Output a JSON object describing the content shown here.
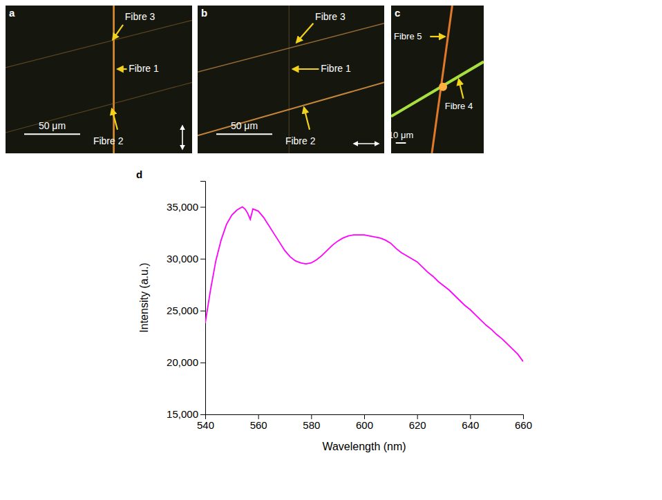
{
  "panels": [
    {
      "letter": "a",
      "labels": [
        "Fibre 3",
        "Fibre 1",
        "Fibre 2"
      ],
      "scale_bar": "50 μm"
    },
    {
      "letter": "b",
      "labels": [
        "Fibre 3",
        "Fibre 1",
        "Fibre 2"
      ],
      "scale_bar": "50 μm"
    },
    {
      "letter": "c",
      "labels": [
        "Fibre 5",
        "Fibre 4"
      ],
      "scale_bar": "10 μm"
    },
    {
      "letter": "d"
    }
  ],
  "chart_data": {
    "type": "line",
    "xlabel": "Wavelength (nm)",
    "ylabel": "Intensity (a.u.)",
    "x": [
      540,
      542,
      544,
      546,
      548,
      550,
      552,
      554,
      555,
      556,
      557,
      558,
      560,
      562,
      564,
      566,
      568,
      570,
      572,
      574,
      576,
      578,
      580,
      582,
      584,
      586,
      588,
      590,
      592,
      594,
      596,
      598,
      600,
      602,
      604,
      606,
      608,
      610,
      612,
      614,
      616,
      618,
      620,
      622,
      624,
      626,
      628,
      630,
      632,
      634,
      636,
      638,
      640,
      642,
      644,
      646,
      648,
      650,
      652,
      654,
      656,
      658,
      660
    ],
    "values": [
      23800,
      27000,
      29800,
      31800,
      33300,
      34200,
      34700,
      35000,
      34800,
      34400,
      33800,
      34800,
      34600,
      34000,
      33200,
      32400,
      31600,
      30800,
      30200,
      29800,
      29600,
      29500,
      29600,
      29900,
      30300,
      30800,
      31300,
      31700,
      32000,
      32200,
      32300,
      32300,
      32300,
      32200,
      32100,
      32000,
      31800,
      31500,
      31000,
      30600,
      30300,
      30000,
      29700,
      29200,
      28700,
      28300,
      27800,
      27400,
      27000,
      26500,
      26000,
      25500,
      25100,
      24600,
      24100,
      23600,
      23200,
      22700,
      22300,
      21800,
      21300,
      20800,
      20100
    ],
    "color": "#ff00ff",
    "xlim": [
      540,
      660
    ],
    "xticks": [
      540,
      560,
      580,
      600,
      620,
      640,
      660
    ],
    "ylim": [
      15000,
      37500
    ],
    "yticks": [
      {
        "value": 15000,
        "label": "15,000"
      },
      {
        "value": 20000,
        "label": "20,000"
      },
      {
        "value": 25000,
        "label": "25,000"
      },
      {
        "value": 30000,
        "label": "30,000"
      },
      {
        "value": 35000,
        "label": "35,000"
      }
    ],
    "grid": false
  }
}
